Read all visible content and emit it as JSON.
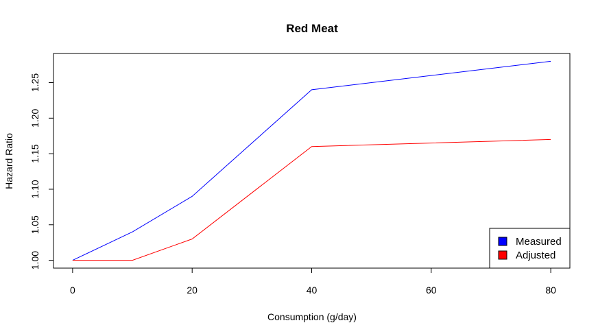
{
  "chart_data": {
    "type": "line",
    "title": "Red Meat",
    "xlabel": "Consumption (g/day)",
    "ylabel": "Hazard Ratio",
    "x": [
      0,
      10,
      20,
      40,
      80
    ],
    "xlim": [
      -3.2,
      83.2
    ],
    "ylim": [
      0.989,
      1.291
    ],
    "xticks": [
      0,
      20,
      40,
      60,
      80
    ],
    "xtick_labels": [
      "0",
      "20",
      "40",
      "60",
      "80"
    ],
    "yticks": [
      1.0,
      1.05,
      1.1,
      1.15,
      1.2,
      1.25
    ],
    "ytick_labels": [
      "1.00",
      "1.05",
      "1.10",
      "1.15",
      "1.20",
      "1.25"
    ],
    "grid": false,
    "legend_position": "bottom-right",
    "series": [
      {
        "name": "Measured",
        "color": "#0000ff",
        "values": [
          1.0,
          1.04,
          1.09,
          1.24,
          1.28
        ]
      },
      {
        "name": "Adjusted",
        "color": "#ff0000",
        "values": [
          1.0,
          1.0,
          1.03,
          1.16,
          1.17
        ]
      }
    ]
  }
}
